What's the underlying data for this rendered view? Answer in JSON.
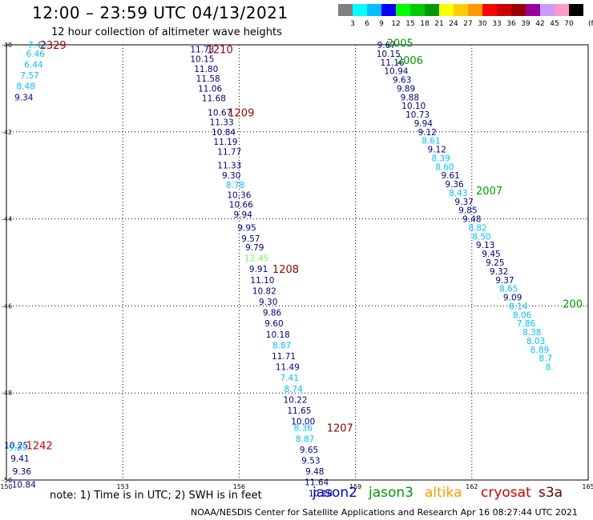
{
  "header": {
    "title": "12:00 – 23:59 UTC 04/13/2021",
    "subtitle": "12 hour collection of altimeter wave heights"
  },
  "colorbar": {
    "colors": [
      "#808080",
      "#00ffff",
      "#00bfff",
      "#0000ff",
      "#00ff00",
      "#00cc00",
      "#009900",
      "#ffff00",
      "#ffcc00",
      "#ff9900",
      "#ff0000",
      "#cc0000",
      "#990000",
      "#990099",
      "#cc99ff",
      "#ff99cc",
      "#000000"
    ],
    "labels": [
      "3",
      "6",
      "9",
      "12",
      "15",
      "18",
      "21",
      "24",
      "27",
      "30",
      "33",
      "36",
      "39",
      "42",
      "45",
      "70"
    ],
    "unit": "(ft)"
  },
  "footer": {
    "note": "note:  1) Time is in UTC;  2) SWH is in feet",
    "credit": "NOAA/NESDIS Center for Satellite Applications and Research     Apr 16 08:27:44 UTC 2021",
    "satellites": [
      {
        "name": "jason2",
        "color": "#0000cc"
      },
      {
        "name": "jason3",
        "color": "#009900"
      },
      {
        "name": "altika",
        "color": "#ff9900"
      },
      {
        "name": "cryosat",
        "color": "#cc0000"
      },
      {
        "name": "s3a",
        "color": "#660000"
      }
    ]
  },
  "chart_data": {
    "type": "scatter",
    "title": "12:00 – 23:59 UTC 04/13/2021",
    "xlim": [
      150,
      165
    ],
    "ylim": [
      -50,
      -40
    ],
    "x_ticks": [
      150,
      153,
      156,
      159,
      162,
      165
    ],
    "y_ticks": [
      -40,
      -42,
      -44,
      -46,
      -48,
      -50
    ],
    "x_tick_labels": [
      "150",
      "153",
      "156",
      "159",
      "162",
      "165"
    ],
    "y_tick_labels": [
      "-40",
      "-42",
      "-44",
      "-46",
      "-48",
      "-50"
    ],
    "grid": true,
    "colors": {
      "dark_blue": "#000080",
      "light_blue": "#00bfff",
      "light_green": "#66ff66"
    },
    "points": [
      {
        "x": 150.8,
        "y": -40.0,
        "v": "7.43",
        "c": "light_blue"
      },
      {
        "x": 150.75,
        "y": -40.2,
        "v": "6.46",
        "c": "light_blue"
      },
      {
        "x": 150.7,
        "y": -40.45,
        "v": "6.44",
        "c": "light_blue"
      },
      {
        "x": 150.6,
        "y": -40.7,
        "v": "7.57",
        "c": "light_blue"
      },
      {
        "x": 150.5,
        "y": -40.95,
        "v": "8.48",
        "c": "light_blue"
      },
      {
        "x": 150.45,
        "y": -41.2,
        "v": "9.34",
        "c": "dark_blue"
      },
      {
        "x": 155.05,
        "y": -40.1,
        "v": "11.73",
        "c": "dark_blue"
      },
      {
        "x": 155.05,
        "y": -40.32,
        "v": "10.15",
        "c": "dark_blue"
      },
      {
        "x": 155.15,
        "y": -40.55,
        "v": "11.80",
        "c": "dark_blue"
      },
      {
        "x": 155.2,
        "y": -40.77,
        "v": "11.58",
        "c": "dark_blue"
      },
      {
        "x": 155.25,
        "y": -41.0,
        "v": "11.06",
        "c": "dark_blue"
      },
      {
        "x": 155.35,
        "y": -41.22,
        "v": "11.68",
        "c": "dark_blue"
      },
      {
        "x": 155.5,
        "y": -41.55,
        "v": "10.67",
        "c": "dark_blue"
      },
      {
        "x": 155.55,
        "y": -41.77,
        "v": "11.33",
        "c": "dark_blue"
      },
      {
        "x": 155.6,
        "y": -42.0,
        "v": "10.84",
        "c": "dark_blue"
      },
      {
        "x": 155.65,
        "y": -42.22,
        "v": "11.19",
        "c": "dark_blue"
      },
      {
        "x": 155.75,
        "y": -42.45,
        "v": "11.77",
        "c": "dark_blue"
      },
      {
        "x": 155.75,
        "y": -42.77,
        "v": "11.33",
        "c": "dark_blue"
      },
      {
        "x": 155.8,
        "y": -43.0,
        "v": "9.30",
        "c": "dark_blue"
      },
      {
        "x": 155.9,
        "y": -43.22,
        "v": "8.78",
        "c": "light_blue"
      },
      {
        "x": 156.0,
        "y": -43.45,
        "v": "10.36",
        "c": "dark_blue"
      },
      {
        "x": 156.05,
        "y": -43.67,
        "v": "10.66",
        "c": "dark_blue"
      },
      {
        "x": 156.1,
        "y": -43.9,
        "v": "9.94",
        "c": "dark_blue"
      },
      {
        "x": 156.2,
        "y": -44.2,
        "v": "9.95",
        "c": "dark_blue"
      },
      {
        "x": 156.3,
        "y": -44.45,
        "v": "9.57",
        "c": "dark_blue"
      },
      {
        "x": 156.4,
        "y": -44.65,
        "v": "9.79",
        "c": "dark_blue"
      },
      {
        "x": 156.45,
        "y": -44.9,
        "v": "12.45",
        "c": "light_green"
      },
      {
        "x": 156.5,
        "y": -45.15,
        "v": "9.91",
        "c": "dark_blue"
      },
      {
        "x": 156.6,
        "y": -45.4,
        "v": "11.10",
        "c": "dark_blue"
      },
      {
        "x": 156.65,
        "y": -45.65,
        "v": "10.82",
        "c": "dark_blue"
      },
      {
        "x": 156.75,
        "y": -45.9,
        "v": "9.30",
        "c": "dark_blue"
      },
      {
        "x": 156.85,
        "y": -46.15,
        "v": "9.86",
        "c": "dark_blue"
      },
      {
        "x": 156.9,
        "y": -46.4,
        "v": "9.60",
        "c": "dark_blue"
      },
      {
        "x": 157.0,
        "y": -46.65,
        "v": "10.18",
        "c": "dark_blue"
      },
      {
        "x": 157.1,
        "y": -46.9,
        "v": "8.87",
        "c": "light_blue"
      },
      {
        "x": 157.15,
        "y": -47.15,
        "v": "11.71",
        "c": "dark_blue"
      },
      {
        "x": 157.25,
        "y": -47.4,
        "v": "11.49",
        "c": "dark_blue"
      },
      {
        "x": 157.3,
        "y": -47.65,
        "v": "7.41",
        "c": "light_blue"
      },
      {
        "x": 157.4,
        "y": -47.9,
        "v": "8.74",
        "c": "light_blue"
      },
      {
        "x": 157.45,
        "y": -48.15,
        "v": "10.22",
        "c": "dark_blue"
      },
      {
        "x": 157.55,
        "y": -48.4,
        "v": "11.65",
        "c": "dark_blue"
      },
      {
        "x": 157.65,
        "y": -48.65,
        "v": "10.00",
        "c": "dark_blue"
      },
      {
        "x": 157.65,
        "y": -48.8,
        "v": "8.36",
        "c": "light_blue"
      },
      {
        "x": 157.7,
        "y": -49.05,
        "v": "8.87",
        "c": "light_blue"
      },
      {
        "x": 157.8,
        "y": -49.3,
        "v": "9.65",
        "c": "dark_blue"
      },
      {
        "x": 157.85,
        "y": -49.55,
        "v": "9.53",
        "c": "dark_blue"
      },
      {
        "x": 157.95,
        "y": -49.8,
        "v": "9.48",
        "c": "dark_blue"
      },
      {
        "x": 158.0,
        "y": -50.05,
        "v": "11.64",
        "c": "dark_blue"
      },
      {
        "x": 158.1,
        "y": -50.3,
        "v": "10.18",
        "c": "dark_blue"
      },
      {
        "x": 159.8,
        "y": -40.0,
        "v": "9.67",
        "c": "dark_blue"
      },
      {
        "x": 159.85,
        "y": -40.2,
        "v": "10.15",
        "c": "dark_blue"
      },
      {
        "x": 159.95,
        "y": -40.4,
        "v": "11.16",
        "c": "dark_blue"
      },
      {
        "x": 160.05,
        "y": -40.6,
        "v": "10.94",
        "c": "dark_blue"
      },
      {
        "x": 160.2,
        "y": -40.8,
        "v": "9.63",
        "c": "dark_blue"
      },
      {
        "x": 160.3,
        "y": -41.0,
        "v": "9.89",
        "c": "dark_blue"
      },
      {
        "x": 160.4,
        "y": -41.2,
        "v": "9.88",
        "c": "dark_blue"
      },
      {
        "x": 160.5,
        "y": -41.4,
        "v": "10.10",
        "c": "dark_blue"
      },
      {
        "x": 160.6,
        "y": -41.6,
        "v": "10.73",
        "c": "dark_blue"
      },
      {
        "x": 160.75,
        "y": -41.8,
        "v": "9.94",
        "c": "dark_blue"
      },
      {
        "x": 160.85,
        "y": -42.0,
        "v": "9.12",
        "c": "dark_blue"
      },
      {
        "x": 160.95,
        "y": -42.2,
        "v": "8.61",
        "c": "light_blue"
      },
      {
        "x": 161.1,
        "y": -42.4,
        "v": "9.12",
        "c": "dark_blue"
      },
      {
        "x": 161.2,
        "y": -42.6,
        "v": "8.39",
        "c": "light_blue"
      },
      {
        "x": 161.3,
        "y": -42.8,
        "v": "8.60",
        "c": "light_blue"
      },
      {
        "x": 161.45,
        "y": -43.0,
        "v": "9.61",
        "c": "dark_blue"
      },
      {
        "x": 161.55,
        "y": -43.2,
        "v": "9.36",
        "c": "dark_blue"
      },
      {
        "x": 161.65,
        "y": -43.4,
        "v": "8.43",
        "c": "light_blue"
      },
      {
        "x": 161.8,
        "y": -43.6,
        "v": "9.37",
        "c": "dark_blue"
      },
      {
        "x": 161.9,
        "y": -43.8,
        "v": "9.85",
        "c": "dark_blue"
      },
      {
        "x": 162.0,
        "y": -44.0,
        "v": "9.48",
        "c": "dark_blue"
      },
      {
        "x": 162.15,
        "y": -44.2,
        "v": "8.82",
        "c": "light_blue"
      },
      {
        "x": 162.25,
        "y": -44.4,
        "v": "8.50",
        "c": "light_blue"
      },
      {
        "x": 162.35,
        "y": -44.6,
        "v": "9.13",
        "c": "dark_blue"
      },
      {
        "x": 162.5,
        "y": -44.8,
        "v": "9.45",
        "c": "dark_blue"
      },
      {
        "x": 162.6,
        "y": -45.0,
        "v": "9.25",
        "c": "dark_blue"
      },
      {
        "x": 162.7,
        "y": -45.2,
        "v": "9.32",
        "c": "dark_blue"
      },
      {
        "x": 162.85,
        "y": -45.4,
        "v": "9.37",
        "c": "dark_blue"
      },
      {
        "x": 162.95,
        "y": -45.6,
        "v": "8.65",
        "c": "light_blue"
      },
      {
        "x": 163.05,
        "y": -45.8,
        "v": "9.09",
        "c": "dark_blue"
      },
      {
        "x": 163.2,
        "y": -46.0,
        "v": "8.14",
        "c": "light_blue"
      },
      {
        "x": 163.3,
        "y": -46.2,
        "v": "8.06",
        "c": "light_blue"
      },
      {
        "x": 163.4,
        "y": -46.4,
        "v": "7.86",
        "c": "light_blue"
      },
      {
        "x": 163.55,
        "y": -46.6,
        "v": "8.38",
        "c": "light_blue"
      },
      {
        "x": 163.65,
        "y": -46.8,
        "v": "8.03",
        "c": "light_blue"
      },
      {
        "x": 163.75,
        "y": -47.0,
        "v": "8.89",
        "c": "light_blue"
      },
      {
        "x": 163.9,
        "y": -47.2,
        "v": "8.7",
        "c": "light_blue"
      },
      {
        "x": 164.0,
        "y": -47.4,
        "v": "8.",
        "c": "light_blue"
      },
      {
        "x": 150.25,
        "y": -49.2,
        "v": "10.25",
        "c": "dark_blue"
      },
      {
        "x": 150.3,
        "y": -49.25,
        "v": "9.29",
        "c": "light_blue"
      },
      {
        "x": 150.35,
        "y": -49.5,
        "v": "9.41",
        "c": "dark_blue"
      },
      {
        "x": 150.4,
        "y": -49.8,
        "v": "9.36",
        "c": "dark_blue"
      },
      {
        "x": 150.45,
        "y": -50.1,
        "v": "10.84",
        "c": "dark_blue"
      }
    ],
    "pass_labels": [
      {
        "x": 151.2,
        "y": -40.0,
        "text": "2329",
        "color": "#990000"
      },
      {
        "x": 155.5,
        "y": -40.1,
        "text": "1210",
        "color": "#990000"
      },
      {
        "x": 156.05,
        "y": -41.55,
        "text": "1209",
        "color": "#990000"
      },
      {
        "x": 157.2,
        "y": -45.15,
        "text": "1208",
        "color": "#990000"
      },
      {
        "x": 158.6,
        "y": -48.8,
        "text": "1207",
        "color": "#990000"
      },
      {
        "x": 150.85,
        "y": -49.2,
        "text": "1242",
        "color": "#cc0000"
      },
      {
        "x": 160.15,
        "y": -39.95,
        "text": "2005",
        "color": "#009900"
      },
      {
        "x": 160.4,
        "y": -40.35,
        "text": "2006",
        "color": "#009900"
      },
      {
        "x": 162.45,
        "y": -43.35,
        "text": "2007",
        "color": "#009900"
      },
      {
        "x": 164.6,
        "y": -45.95,
        "text": "200",
        "color": "#009900"
      }
    ]
  }
}
